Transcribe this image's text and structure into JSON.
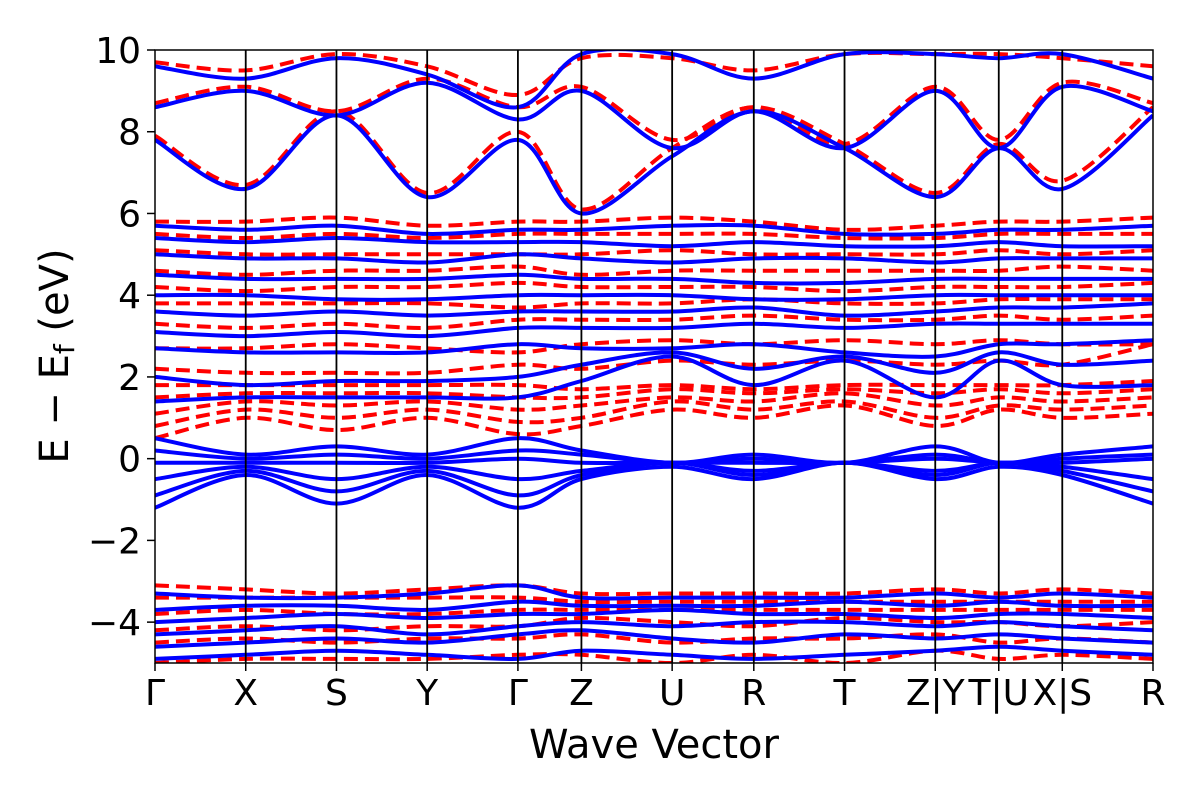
{
  "chart_data": {
    "type": "line",
    "title": "",
    "xlabel": "Wave Vector",
    "ylabel": {
      "prefix": "E − E",
      "subscript": "f",
      "suffix": " (eV)"
    },
    "ylim": [
      -5,
      10
    ],
    "yticks": [
      {
        "value": 10,
        "label": "10"
      },
      {
        "value": 8,
        "label": "8"
      },
      {
        "value": 6,
        "label": "6"
      },
      {
        "value": 4,
        "label": "4"
      },
      {
        "value": 2,
        "label": "2"
      },
      {
        "value": 0,
        "label": "0"
      },
      {
        "value": -2,
        "label": "−2"
      },
      {
        "value": -4,
        "label": "−4"
      }
    ],
    "xlim": [
      0,
      11
    ],
    "kpoints": [
      {
        "label": "Γ",
        "x": 0
      },
      {
        "label": "X",
        "x": 1.0
      },
      {
        "label": "S",
        "x": 2.0
      },
      {
        "label": "Y",
        "x": 3.0
      },
      {
        "label": "Γ",
        "x": 4.0
      },
      {
        "label": "Z",
        "x": 4.7
      },
      {
        "label": "U",
        "x": 5.7
      },
      {
        "label": "R",
        "x": 6.6
      },
      {
        "label": "T",
        "x": 7.6
      },
      {
        "label": "Z|Y",
        "x": 8.6
      },
      {
        "label": "T|U",
        "x": 9.3
      },
      {
        "label": "X|S",
        "x": 10.0
      },
      {
        "label": "R",
        "x": 11.0
      }
    ],
    "series_styles": [
      {
        "name": "red dashed bands",
        "color": "#ff0000",
        "style": "dashed"
      },
      {
        "name": "blue solid bands",
        "color": "#0000ff",
        "style": "solid"
      }
    ],
    "bands": {
      "blue": [
        [
          -4.9,
          -4.8,
          -4.7,
          -4.8,
          -4.9,
          -4.7,
          -4.8,
          -4.9,
          -4.8,
          -4.7,
          -4.6,
          -4.7,
          -4.8
        ],
        [
          -4.6,
          -4.5,
          -4.4,
          -4.5,
          -4.3,
          -4.2,
          -4.4,
          -4.5,
          -4.3,
          -4.4,
          -4.3,
          -4.4,
          -4.5
        ],
        [
          -4.3,
          -4.2,
          -4.1,
          -4.3,
          -4.1,
          -4.0,
          -4.1,
          -4.0,
          -4.0,
          -4.1,
          -4.0,
          -4.1,
          -4.2
        ],
        [
          -4.0,
          -3.9,
          -3.8,
          -3.9,
          -3.8,
          -3.8,
          -3.7,
          -3.8,
          -3.8,
          -3.9,
          -3.8,
          -3.8,
          -3.9
        ],
        [
          -3.7,
          -3.6,
          -3.6,
          -3.7,
          -3.5,
          -3.6,
          -3.6,
          -3.6,
          -3.5,
          -3.6,
          -3.5,
          -3.6,
          -3.6
        ],
        [
          -3.3,
          -3.4,
          -3.4,
          -3.3,
          -3.1,
          -3.4,
          -3.4,
          -3.4,
          -3.4,
          -3.3,
          -3.4,
          -3.3,
          -3.4
        ],
        [
          -1.2,
          -0.4,
          -1.1,
          -0.4,
          -1.2,
          -0.5,
          -0.2,
          -0.5,
          -0.1,
          -0.5,
          -0.2,
          -0.4,
          -1.1
        ],
        [
          -0.9,
          -0.3,
          -0.8,
          -0.3,
          -0.9,
          -0.4,
          -0.1,
          -0.4,
          -0.1,
          -0.4,
          -0.1,
          -0.3,
          -0.8
        ],
        [
          -0.5,
          -0.2,
          -0.5,
          -0.2,
          -0.5,
          -0.3,
          -0.1,
          -0.3,
          -0.1,
          -0.3,
          -0.1,
          -0.2,
          -0.5
        ],
        [
          -0.1,
          -0.1,
          -0.1,
          -0.1,
          0.0,
          -0.1,
          -0.1,
          -0.1,
          -0.1,
          0.0,
          -0.1,
          -0.1,
          0.0
        ],
        [
          0.2,
          0.0,
          0.1,
          0.0,
          0.2,
          0.1,
          -0.1,
          0.0,
          -0.1,
          0.1,
          -0.1,
          0.0,
          0.1
        ],
        [
          0.5,
          0.1,
          0.3,
          0.1,
          0.5,
          0.2,
          -0.1,
          0.1,
          -0.1,
          0.3,
          -0.1,
          0.1,
          0.3
        ],
        [
          1.4,
          1.5,
          1.5,
          1.5,
          1.5,
          1.9,
          2.5,
          1.8,
          2.4,
          1.5,
          2.4,
          1.8,
          1.8
        ],
        [
          2.0,
          1.8,
          1.9,
          1.9,
          2.0,
          2.3,
          2.6,
          2.2,
          2.5,
          2.1,
          2.6,
          2.3,
          2.4
        ],
        [
          2.7,
          2.6,
          2.6,
          2.6,
          2.8,
          2.7,
          2.7,
          2.8,
          2.6,
          2.5,
          2.8,
          2.8,
          2.9
        ],
        [
          3.1,
          3.0,
          3.1,
          3.0,
          3.2,
          3.2,
          3.2,
          3.3,
          3.2,
          3.3,
          3.3,
          3.3,
          3.3
        ],
        [
          3.6,
          3.5,
          3.6,
          3.5,
          3.6,
          3.6,
          3.6,
          3.7,
          3.5,
          3.6,
          3.7,
          3.7,
          3.8
        ],
        [
          4.0,
          4.0,
          3.9,
          3.9,
          4.0,
          4.0,
          4.0,
          3.9,
          3.9,
          4.0,
          4.0,
          4.0,
          4.0
        ],
        [
          4.5,
          4.4,
          4.4,
          4.4,
          4.5,
          4.4,
          4.4,
          4.3,
          4.3,
          4.4,
          4.4,
          4.4,
          4.4
        ],
        [
          5.0,
          4.9,
          4.9,
          4.8,
          5.0,
          4.9,
          4.8,
          4.9,
          4.9,
          4.8,
          4.9,
          4.9,
          4.9
        ],
        [
          5.4,
          5.3,
          5.4,
          5.3,
          5.3,
          5.3,
          5.2,
          5.3,
          5.2,
          5.2,
          5.3,
          5.2,
          5.2
        ],
        [
          5.7,
          5.6,
          5.7,
          5.5,
          5.6,
          5.6,
          5.7,
          5.7,
          5.5,
          5.5,
          5.6,
          5.6,
          5.7
        ],
        [
          7.8,
          6.6,
          8.4,
          6.4,
          7.8,
          6.0,
          7.4,
          8.5,
          7.6,
          6.4,
          7.6,
          6.6,
          8.4
        ],
        [
          8.6,
          9.0,
          8.4,
          9.2,
          8.3,
          9.0,
          7.6,
          8.5,
          7.6,
          9.0,
          7.6,
          9.1,
          8.5
        ],
        [
          9.6,
          9.3,
          9.8,
          9.4,
          8.6,
          9.9,
          9.9,
          9.3,
          9.9,
          9.9,
          9.8,
          9.9,
          9.3
        ]
      ],
      "red": [
        [
          -5.0,
          -4.9,
          -4.9,
          -4.9,
          -4.8,
          -4.8,
          -5.0,
          -4.8,
          -5.0,
          -4.7,
          -4.9,
          -4.8,
          -4.9
        ],
        [
          -4.5,
          -4.4,
          -4.5,
          -4.4,
          -4.4,
          -4.3,
          -4.5,
          -4.4,
          -4.4,
          -4.3,
          -4.5,
          -4.4,
          -4.5
        ],
        [
          -4.2,
          -4.1,
          -4.2,
          -4.1,
          -4.1,
          -3.9,
          -4.0,
          -4.1,
          -3.9,
          -4.0,
          -4.0,
          -4.1,
          -4.0
        ],
        [
          -3.8,
          -3.7,
          -3.8,
          -3.8,
          -3.7,
          -3.7,
          -3.7,
          -3.7,
          -3.7,
          -3.7,
          -3.7,
          -3.7,
          -3.7
        ],
        [
          -3.4,
          -3.4,
          -3.4,
          -3.4,
          -3.4,
          -3.5,
          -3.5,
          -3.5,
          -3.5,
          -3.5,
          -3.5,
          -3.5,
          -3.5
        ],
        [
          -3.1,
          -3.2,
          -3.3,
          -3.2,
          -3.1,
          -3.3,
          -3.3,
          -3.3,
          -3.3,
          -3.2,
          -3.3,
          -3.2,
          -3.3
        ],
        [
          0.5,
          1.0,
          0.7,
          1.0,
          0.6,
          0.8,
          1.2,
          1.0,
          1.3,
          0.8,
          1.2,
          1.0,
          1.1
        ],
        [
          0.8,
          1.2,
          1.0,
          1.2,
          0.9,
          1.0,
          1.4,
          1.2,
          1.4,
          1.0,
          1.3,
          1.2,
          1.3
        ],
        [
          1.1,
          1.4,
          1.3,
          1.4,
          1.2,
          1.3,
          1.5,
          1.4,
          1.6,
          1.3,
          1.5,
          1.4,
          1.5
        ],
        [
          1.5,
          1.6,
          1.6,
          1.6,
          1.5,
          1.5,
          1.7,
          1.6,
          1.7,
          1.6,
          1.7,
          1.6,
          1.7
        ],
        [
          1.8,
          1.8,
          1.8,
          1.8,
          1.8,
          1.7,
          1.8,
          1.7,
          1.8,
          1.8,
          1.8,
          1.8,
          1.9
        ],
        [
          2.2,
          2.1,
          2.1,
          2.1,
          2.3,
          2.2,
          2.4,
          2.3,
          2.4,
          2.3,
          2.4,
          2.3,
          2.8
        ],
        [
          2.7,
          2.7,
          2.8,
          2.7,
          2.6,
          2.8,
          2.9,
          2.8,
          2.9,
          2.8,
          2.9,
          2.8,
          2.8
        ],
        [
          3.3,
          3.2,
          3.3,
          3.2,
          3.4,
          3.4,
          3.4,
          3.5,
          3.4,
          3.4,
          3.5,
          3.4,
          3.5
        ],
        [
          3.8,
          3.8,
          3.8,
          3.8,
          3.7,
          3.8,
          3.8,
          3.9,
          3.8,
          3.8,
          3.9,
          3.9,
          3.9
        ],
        [
          4.2,
          4.1,
          4.2,
          4.2,
          4.3,
          4.2,
          4.2,
          4.2,
          4.1,
          4.2,
          4.2,
          4.2,
          4.3
        ],
        [
          4.6,
          4.5,
          4.6,
          4.6,
          4.7,
          4.5,
          4.6,
          4.6,
          4.6,
          4.6,
          4.6,
          4.7,
          4.6
        ],
        [
          5.1,
          5.0,
          5.0,
          5.0,
          5.0,
          5.0,
          5.1,
          5.0,
          5.0,
          5.0,
          5.1,
          5.0,
          5.1
        ],
        [
          5.5,
          5.4,
          5.5,
          5.4,
          5.5,
          5.5,
          5.5,
          5.5,
          5.4,
          5.4,
          5.5,
          5.5,
          5.5
        ],
        [
          5.8,
          5.8,
          5.9,
          5.7,
          5.8,
          5.8,
          5.9,
          5.8,
          5.6,
          5.7,
          5.8,
          5.8,
          5.9
        ],
        [
          7.9,
          6.7,
          8.5,
          6.5,
          8.0,
          6.1,
          7.6,
          8.6,
          7.7,
          6.5,
          7.7,
          6.8,
          8.6
        ],
        [
          8.7,
          9.1,
          8.5,
          9.3,
          8.6,
          9.1,
          7.8,
          8.6,
          7.7,
          9.1,
          7.8,
          9.2,
          8.7
        ],
        [
          9.7,
          9.5,
          9.9,
          9.6,
          8.9,
          9.8,
          9.8,
          9.5,
          9.9,
          9.9,
          9.9,
          9.8,
          9.6
        ]
      ]
    }
  }
}
